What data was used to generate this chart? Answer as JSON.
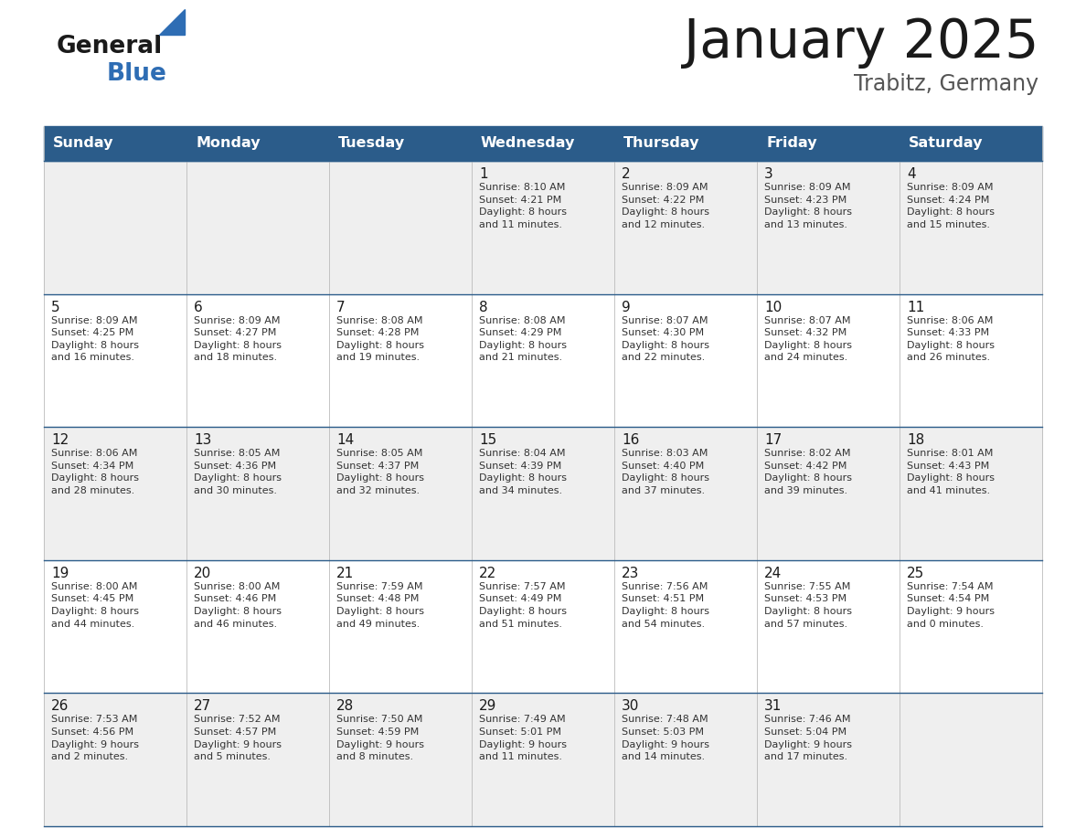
{
  "title": "January 2025",
  "subtitle": "Trabitz, Germany",
  "header_bg": "#2B5C8A",
  "header_text": "#FFFFFF",
  "row_bg_light": "#EFEFEF",
  "row_bg_white": "#FFFFFF",
  "cell_border_color": "#BBBBBB",
  "row_border_color": "#2B5C8A",
  "day_headers": [
    "Sunday",
    "Monday",
    "Tuesday",
    "Wednesday",
    "Thursday",
    "Friday",
    "Saturday"
  ],
  "title_color": "#1a1a1a",
  "subtitle_color": "#555555",
  "date_color": "#1a1a1a",
  "info_color": "#333333",
  "logo_general_color": "#1a1a1a",
  "logo_blue_color": "#2E6DB4",
  "logo_triangle_color": "#2E6DB4",
  "calendar": [
    [
      {
        "day": "",
        "info": ""
      },
      {
        "day": "",
        "info": ""
      },
      {
        "day": "",
        "info": ""
      },
      {
        "day": "1",
        "info": "Sunrise: 8:10 AM\nSunset: 4:21 PM\nDaylight: 8 hours\nand 11 minutes."
      },
      {
        "day": "2",
        "info": "Sunrise: 8:09 AM\nSunset: 4:22 PM\nDaylight: 8 hours\nand 12 minutes."
      },
      {
        "day": "3",
        "info": "Sunrise: 8:09 AM\nSunset: 4:23 PM\nDaylight: 8 hours\nand 13 minutes."
      },
      {
        "day": "4",
        "info": "Sunrise: 8:09 AM\nSunset: 4:24 PM\nDaylight: 8 hours\nand 15 minutes."
      }
    ],
    [
      {
        "day": "5",
        "info": "Sunrise: 8:09 AM\nSunset: 4:25 PM\nDaylight: 8 hours\nand 16 minutes."
      },
      {
        "day": "6",
        "info": "Sunrise: 8:09 AM\nSunset: 4:27 PM\nDaylight: 8 hours\nand 18 minutes."
      },
      {
        "day": "7",
        "info": "Sunrise: 8:08 AM\nSunset: 4:28 PM\nDaylight: 8 hours\nand 19 minutes."
      },
      {
        "day": "8",
        "info": "Sunrise: 8:08 AM\nSunset: 4:29 PM\nDaylight: 8 hours\nand 21 minutes."
      },
      {
        "day": "9",
        "info": "Sunrise: 8:07 AM\nSunset: 4:30 PM\nDaylight: 8 hours\nand 22 minutes."
      },
      {
        "day": "10",
        "info": "Sunrise: 8:07 AM\nSunset: 4:32 PM\nDaylight: 8 hours\nand 24 minutes."
      },
      {
        "day": "11",
        "info": "Sunrise: 8:06 AM\nSunset: 4:33 PM\nDaylight: 8 hours\nand 26 minutes."
      }
    ],
    [
      {
        "day": "12",
        "info": "Sunrise: 8:06 AM\nSunset: 4:34 PM\nDaylight: 8 hours\nand 28 minutes."
      },
      {
        "day": "13",
        "info": "Sunrise: 8:05 AM\nSunset: 4:36 PM\nDaylight: 8 hours\nand 30 minutes."
      },
      {
        "day": "14",
        "info": "Sunrise: 8:05 AM\nSunset: 4:37 PM\nDaylight: 8 hours\nand 32 minutes."
      },
      {
        "day": "15",
        "info": "Sunrise: 8:04 AM\nSunset: 4:39 PM\nDaylight: 8 hours\nand 34 minutes."
      },
      {
        "day": "16",
        "info": "Sunrise: 8:03 AM\nSunset: 4:40 PM\nDaylight: 8 hours\nand 37 minutes."
      },
      {
        "day": "17",
        "info": "Sunrise: 8:02 AM\nSunset: 4:42 PM\nDaylight: 8 hours\nand 39 minutes."
      },
      {
        "day": "18",
        "info": "Sunrise: 8:01 AM\nSunset: 4:43 PM\nDaylight: 8 hours\nand 41 minutes."
      }
    ],
    [
      {
        "day": "19",
        "info": "Sunrise: 8:00 AM\nSunset: 4:45 PM\nDaylight: 8 hours\nand 44 minutes."
      },
      {
        "day": "20",
        "info": "Sunrise: 8:00 AM\nSunset: 4:46 PM\nDaylight: 8 hours\nand 46 minutes."
      },
      {
        "day": "21",
        "info": "Sunrise: 7:59 AM\nSunset: 4:48 PM\nDaylight: 8 hours\nand 49 minutes."
      },
      {
        "day": "22",
        "info": "Sunrise: 7:57 AM\nSunset: 4:49 PM\nDaylight: 8 hours\nand 51 minutes."
      },
      {
        "day": "23",
        "info": "Sunrise: 7:56 AM\nSunset: 4:51 PM\nDaylight: 8 hours\nand 54 minutes."
      },
      {
        "day": "24",
        "info": "Sunrise: 7:55 AM\nSunset: 4:53 PM\nDaylight: 8 hours\nand 57 minutes."
      },
      {
        "day": "25",
        "info": "Sunrise: 7:54 AM\nSunset: 4:54 PM\nDaylight: 9 hours\nand 0 minutes."
      }
    ],
    [
      {
        "day": "26",
        "info": "Sunrise: 7:53 AM\nSunset: 4:56 PM\nDaylight: 9 hours\nand 2 minutes."
      },
      {
        "day": "27",
        "info": "Sunrise: 7:52 AM\nSunset: 4:57 PM\nDaylight: 9 hours\nand 5 minutes."
      },
      {
        "day": "28",
        "info": "Sunrise: 7:50 AM\nSunset: 4:59 PM\nDaylight: 9 hours\nand 8 minutes."
      },
      {
        "day": "29",
        "info": "Sunrise: 7:49 AM\nSunset: 5:01 PM\nDaylight: 9 hours\nand 11 minutes."
      },
      {
        "day": "30",
        "info": "Sunrise: 7:48 AM\nSunset: 5:03 PM\nDaylight: 9 hours\nand 14 minutes."
      },
      {
        "day": "31",
        "info": "Sunrise: 7:46 AM\nSunset: 5:04 PM\nDaylight: 9 hours\nand 17 minutes."
      },
      {
        "day": "",
        "info": ""
      }
    ]
  ]
}
